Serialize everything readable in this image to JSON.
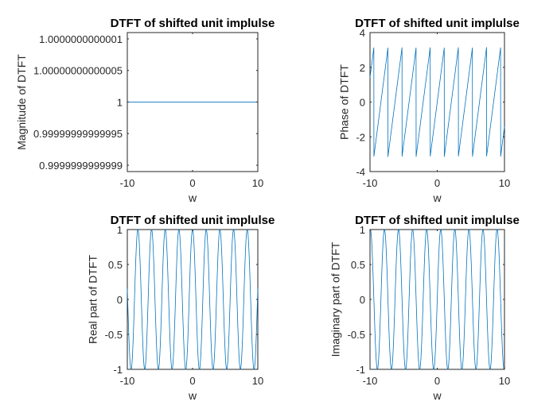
{
  "chart_data": [
    {
      "type": "line",
      "title": "DTFT of shifted unit implulse",
      "xlabel": "w",
      "ylabel": "Magnitude of DTFT",
      "xlim": [
        -10,
        10
      ],
      "ylim": [
        0.99999999999989,
        1.00000000000011
      ],
      "xticks": [
        -10,
        0,
        10
      ],
      "yticks": [
        0.9999999999999,
        0.99999999999995,
        1,
        1.00000000000005,
        1.0000000000001
      ],
      "xtick_labels": [
        "-10",
        "0",
        "10"
      ],
      "ytick_labels": [
        "0.9999999999999",
        "0.99999999999995",
        "1",
        "1.00000000000005",
        "1.0000000000001"
      ],
      "series": [
        {
          "function": "magnitude",
          "x_range": [
            -10,
            10
          ],
          "y": 1,
          "color": "#0072BD"
        }
      ]
    },
    {
      "type": "line",
      "title": "DTFT of shifted unit implulse",
      "xlabel": "w",
      "ylabel": "Phase of DTFT",
      "xlim": [
        -10,
        10
      ],
      "ylim": [
        -4,
        4
      ],
      "xticks": [
        -10,
        0,
        10
      ],
      "yticks": [
        -4,
        -2,
        0,
        2,
        4
      ],
      "xtick_labels": [
        "-10",
        "0",
        "10"
      ],
      "ytick_labels": [
        "-4",
        "-2",
        "0",
        "2",
        "4"
      ],
      "series": [
        {
          "function": "phase",
          "shift": 3,
          "x_range": [
            -10,
            10
          ],
          "range": [
            -3.14159,
            3.14159
          ],
          "color": "#0072BD"
        }
      ]
    },
    {
      "type": "line",
      "title": "DTFT of shifted unit implulse",
      "xlabel": "w",
      "ylabel": "Real part of DTFT",
      "xlim": [
        -10,
        10
      ],
      "ylim": [
        -1,
        1
      ],
      "xticks": [
        -10,
        0,
        10
      ],
      "yticks": [
        -1,
        -0.5,
        0,
        0.5,
        1
      ],
      "xtick_labels": [
        "-10",
        "0",
        "10"
      ],
      "ytick_labels": [
        "-1",
        "-0.5",
        "0",
        "0.5",
        "1"
      ],
      "series": [
        {
          "function": "cos",
          "shift": 3,
          "x_range": [
            -10,
            10
          ],
          "color": "#0072BD"
        }
      ]
    },
    {
      "type": "line",
      "title": "DTFT of shifted unit implulse",
      "xlabel": "w",
      "ylabel": "Imaginary part of DTFT",
      "xlim": [
        -10,
        10
      ],
      "ylim": [
        -1,
        1
      ],
      "xticks": [
        -10,
        0,
        10
      ],
      "yticks": [
        -1,
        -0.5,
        0,
        0.5,
        1
      ],
      "xtick_labels": [
        "-10",
        "0",
        "10"
      ],
      "ytick_labels": [
        "-1",
        "-0.5",
        "0",
        "0.5",
        "1"
      ],
      "series": [
        {
          "function": "sin",
          "shift": 3,
          "x_range": [
            -10,
            10
          ],
          "color": "#0072BD"
        }
      ]
    }
  ]
}
